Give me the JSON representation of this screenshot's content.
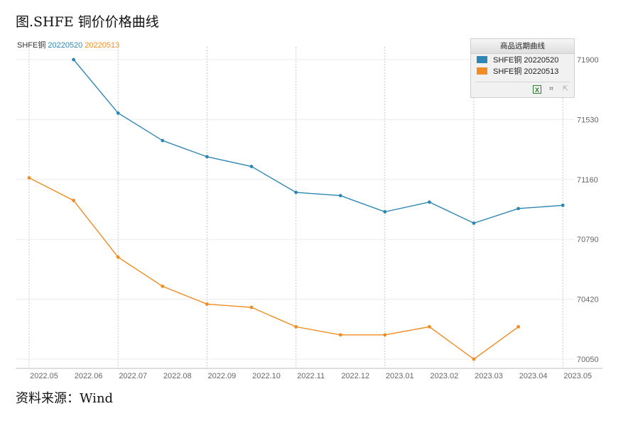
{
  "figure_title": "图.SHFE 铜价价格曲线",
  "source_note": "资料来源：Wind",
  "series_header": {
    "base": "SHFE铜",
    "s0": "20220520",
    "s1": "20220513"
  },
  "legend": {
    "title": "商品远期曲线",
    "items": [
      "SHFE铜 20220520",
      "SHFE铜 20220513"
    ],
    "tools": {
      "excel": "X",
      "crop": "⌗",
      "export": "⇱"
    }
  },
  "colors": {
    "s0": "#2e86b5",
    "s1": "#f08c22",
    "grid": "#c8c8c8"
  },
  "chart_data": {
    "type": "line",
    "x_ticks": [
      "2022.05",
      "2022.06",
      "2022.07",
      "2022.08",
      "2022.09",
      "2022.10",
      "2022.11",
      "2022.12",
      "2023.01",
      "2023.02",
      "2023.03",
      "2023.04",
      "2023.05"
    ],
    "x": [
      "2022.05",
      "2022.06",
      "2022.07",
      "2022.08",
      "2022.09",
      "2022.10",
      "2022.11",
      "2022.12",
      "2023.01",
      "2023.02",
      "2023.03",
      "2023.04",
      "2023.05"
    ],
    "y_ticks": [
      70050,
      70420,
      70790,
      71160,
      71530,
      71900
    ],
    "ylim": [
      70050,
      71900
    ],
    "grid": true,
    "legend_position": "top-right",
    "series": [
      {
        "name": "SHFE铜 20220520",
        "values": [
          null,
          71900,
          71570,
          71400,
          71300,
          71240,
          71080,
          71060,
          70960,
          71020,
          70890,
          70980,
          71000
        ]
      },
      {
        "name": "SHFE铜 20220513",
        "values": [
          71170,
          71030,
          70680,
          70500,
          70390,
          70370,
          70250,
          70200,
          70200,
          70250,
          70050,
          70250,
          null
        ]
      }
    ]
  }
}
